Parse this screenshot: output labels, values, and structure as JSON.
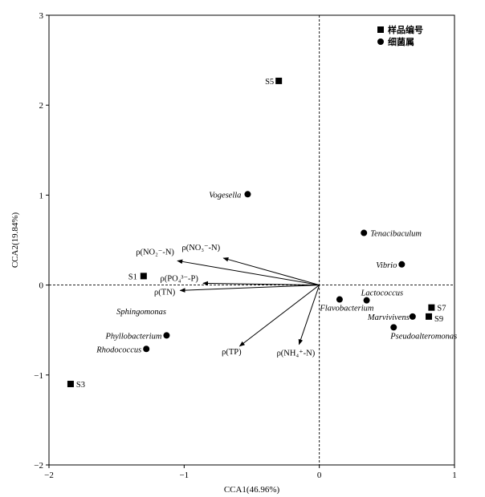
{
  "chart_data": {
    "type": "scatter",
    "xlabel": "CCA1(46.96%)",
    "ylabel": "CCA2(19.84%)",
    "xlim": [
      -2,
      1
    ],
    "ylim": [
      -2,
      3
    ],
    "xticks": [
      "−2",
      "−1",
      "0",
      "1"
    ],
    "yticks": [
      "−2",
      "−1",
      "0",
      "1",
      "2",
      "3"
    ],
    "grid": false,
    "reference_lines": "dashed lines at x=0 and y=0",
    "legend": {
      "placement": "top-right",
      "entries": [
        {
          "marker": "square",
          "label": "样品编号"
        },
        {
          "marker": "circle",
          "label": "细菌属"
        }
      ]
    },
    "samples": [
      {
        "label": "S1",
        "x": -1.3,
        "y": 0.1
      },
      {
        "label": "S3",
        "x": -1.84,
        "y": -1.1
      },
      {
        "label": "S5",
        "x": -0.3,
        "y": 2.27
      },
      {
        "label": "S7",
        "x": 0.83,
        "y": -0.25
      },
      {
        "label": "S9",
        "x": 0.81,
        "y": -0.35
      }
    ],
    "genera": [
      {
        "label": "Vogesella",
        "x": -0.53,
        "y": 1.01
      },
      {
        "label": "Tenacibaculum",
        "x": 0.33,
        "y": 0.58
      },
      {
        "label": "Vibrio",
        "x": 0.61,
        "y": 0.23
      },
      {
        "label": "Lactococcus",
        "x": 0.35,
        "y": -0.17
      },
      {
        "label": "Flavobacterium",
        "x": 0.15,
        "y": -0.16
      },
      {
        "label": "Marvivivens",
        "x": 0.69,
        "y": -0.35
      },
      {
        "label": "Pseudoalteromonas",
        "x": 0.55,
        "y": -0.47
      },
      {
        "label": "Sphingomonas",
        "x": null,
        "y": null
      },
      {
        "label": "Phyllobacterium",
        "x": -1.13,
        "y": -0.56
      },
      {
        "label": "Rhodococcus",
        "x": -1.28,
        "y": -0.71
      }
    ],
    "vectors": [
      {
        "label": "ρ(NO₃⁻-N)",
        "x": -0.71,
        "y": 0.3
      },
      {
        "label": "ρ(NO₂⁻-N)",
        "x": -1.05,
        "y": 0.27
      },
      {
        "label": "ρ(PO₄³⁻-P)",
        "x": -0.86,
        "y": 0.02
      },
      {
        "label": "ρ(TN)",
        "x": -1.03,
        "y": -0.06
      },
      {
        "label": "ρ(TP)",
        "x": -0.59,
        "y": -0.68
      },
      {
        "label": "ρ(NH₄⁺-N)",
        "x": -0.15,
        "y": -0.66
      }
    ],
    "colors": {
      "foreground": "#000000",
      "background": "#ffffff"
    }
  }
}
